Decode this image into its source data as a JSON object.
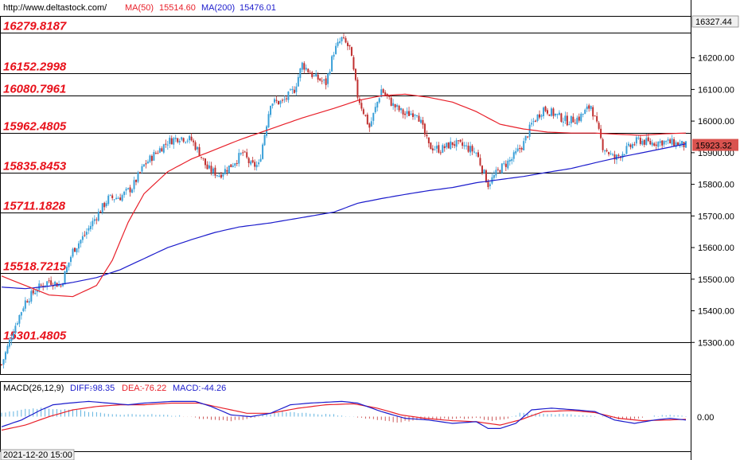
{
  "header": {
    "source": "http://www.deltastock.com/",
    "ma50_label": "MA(50)",
    "ma50_value": "15514.60",
    "ma200_label": "MA(200)",
    "ma200_value": "15476.01"
  },
  "colors": {
    "ma50": "#e8202a",
    "ma200": "#1c1ccc",
    "bull": "#3aa0d8",
    "bear": "#c03030",
    "level_text": "#e8101a",
    "price_tag": "#d9534f",
    "grid_line": "#000000"
  },
  "chart_data": [
    {
      "type": "candlestick",
      "ylim": [
        15200,
        16330
      ],
      "yticks": [
        "16200.00",
        "16100.00",
        "16000.00",
        "15900.00",
        "15800.00",
        "15700.00",
        "15600.00",
        "15500.00",
        "15400.00",
        "15300.00"
      ],
      "ytick_values": [
        16200,
        16100,
        16000,
        15900,
        15800,
        15700,
        15600,
        15500,
        15400,
        15300
      ],
      "levels": [
        {
          "label": "16279.8187",
          "value": 16279.8187
        },
        {
          "label": "16152.2998",
          "value": 16152.2998
        },
        {
          "label": "16080.7961",
          "value": 16080.7961
        },
        {
          "label": "15962.4805",
          "value": 15962.4805
        },
        {
          "label": "15835.8453",
          "value": 15835.8453
        },
        {
          "label": "15711.1828",
          "value": 15711.1828
        },
        {
          "label": "15518.7215",
          "value": 15518.7215
        },
        {
          "label": "15301.4805",
          "value": 15301.4805
        }
      ],
      "top_price": "16327.44",
      "last_price": "15923.32",
      "last_value": 15923.32,
      "close_path": [
        [
          0,
          15230
        ],
        [
          6,
          15340
        ],
        [
          12,
          15430
        ],
        [
          18,
          15470
        ],
        [
          24,
          15495
        ],
        [
          30,
          15480
        ],
        [
          36,
          15590
        ],
        [
          42,
          15640
        ],
        [
          48,
          15700
        ],
        [
          54,
          15755
        ],
        [
          60,
          15760
        ],
        [
          66,
          15790
        ],
        [
          72,
          15860
        ],
        [
          78,
          15900
        ],
        [
          84,
          15935
        ],
        [
          90,
          15950
        ],
        [
          96,
          15940
        ],
        [
          100,
          15900
        ],
        [
          104,
          15850
        ],
        [
          110,
          15830
        ],
        [
          116,
          15860
        ],
        [
          122,
          15900
        ],
        [
          126,
          15860
        ],
        [
          130,
          15860
        ],
        [
          136,
          16060
        ],
        [
          142,
          16060
        ],
        [
          148,
          16100
        ],
        [
          152,
          16180
        ],
        [
          158,
          16140
        ],
        [
          164,
          16120
        ],
        [
          168,
          16220
        ],
        [
          172,
          16260
        ],
        [
          176,
          16230
        ],
        [
          180,
          16080
        ],
        [
          186,
          15980
        ],
        [
          192,
          16100
        ],
        [
          198,
          16050
        ],
        [
          204,
          16020
        ],
        [
          210,
          16030
        ],
        [
          216,
          15920
        ],
        [
          222,
          15910
        ],
        [
          228,
          15930
        ],
        [
          234,
          15920
        ],
        [
          240,
          15900
        ],
        [
          246,
          15800
        ],
        [
          252,
          15850
        ],
        [
          258,
          15880
        ],
        [
          264,
          15930
        ],
        [
          268,
          15990
        ],
        [
          274,
          16040
        ],
        [
          280,
          16020
        ],
        [
          286,
          16000
        ],
        [
          292,
          16010
        ],
        [
          298,
          16050
        ],
        [
          304,
          15920
        ],
        [
          310,
          15880
        ],
        [
          316,
          15910
        ],
        [
          322,
          15940
        ],
        [
          328,
          15930
        ],
        [
          334,
          15935
        ],
        [
          340,
          15930
        ],
        [
          346,
          15923
        ]
      ],
      "ma50_path": [
        [
          0,
          15510
        ],
        [
          12,
          15480
        ],
        [
          24,
          15450
        ],
        [
          36,
          15445
        ],
        [
          48,
          15480
        ],
        [
          56,
          15560
        ],
        [
          64,
          15680
        ],
        [
          72,
          15770
        ],
        [
          84,
          15840
        ],
        [
          96,
          15880
        ],
        [
          108,
          15910
        ],
        [
          120,
          15940
        ],
        [
          136,
          15975
        ],
        [
          152,
          16010
        ],
        [
          168,
          16040
        ],
        [
          180,
          16065
        ],
        [
          192,
          16080
        ],
        [
          204,
          16085
        ],
        [
          216,
          16075
        ],
        [
          228,
          16060
        ],
        [
          240,
          16030
        ],
        [
          252,
          15990
        ],
        [
          264,
          15975
        ],
        [
          276,
          15965
        ],
        [
          288,
          15962
        ],
        [
          300,
          15962
        ],
        [
          312,
          15958
        ],
        [
          324,
          15955
        ],
        [
          336,
          15960
        ],
        [
          346,
          15962
        ]
      ],
      "ma200_path": [
        [
          0,
          15475
        ],
        [
          12,
          15470
        ],
        [
          24,
          15478
        ],
        [
          36,
          15490
        ],
        [
          48,
          15505
        ],
        [
          60,
          15530
        ],
        [
          72,
          15565
        ],
        [
          84,
          15600
        ],
        [
          96,
          15625
        ],
        [
          108,
          15648
        ],
        [
          120,
          15665
        ],
        [
          136,
          15678
        ],
        [
          152,
          15695
        ],
        [
          168,
          15712
        ],
        [
          180,
          15740
        ],
        [
          192,
          15755
        ],
        [
          204,
          15768
        ],
        [
          216,
          15780
        ],
        [
          228,
          15790
        ],
        [
          240,
          15805
        ],
        [
          252,
          15815
        ],
        [
          264,
          15825
        ],
        [
          276,
          15838
        ],
        [
          288,
          15850
        ],
        [
          300,
          15868
        ],
        [
          312,
          15885
        ],
        [
          324,
          15900
        ],
        [
          336,
          15915
        ],
        [
          346,
          15928
        ]
      ]
    },
    {
      "type": "macd",
      "title": "MACD(26,12,9)",
      "diff_label": "DIFF:",
      "diff_value": "-98.35",
      "dea_label": "DEA:",
      "dea_value": "-76.22",
      "macd_label": "MACD:",
      "macd_value": "-44.26",
      "zero_label": "0.00",
      "ylim": [
        -100,
        100
      ],
      "date_label": "2021-12-20 15:00",
      "diff_path": [
        [
          0,
          -30
        ],
        [
          10,
          -10
        ],
        [
          20,
          20
        ],
        [
          26,
          35
        ],
        [
          34,
          40
        ],
        [
          44,
          45
        ],
        [
          54,
          40
        ],
        [
          64,
          35
        ],
        [
          72,
          40
        ],
        [
          86,
          45
        ],
        [
          98,
          45
        ],
        [
          106,
          30
        ],
        [
          116,
          5
        ],
        [
          126,
          0
        ],
        [
          136,
          10
        ],
        [
          146,
          35
        ],
        [
          156,
          40
        ],
        [
          172,
          45
        ],
        [
          180,
          40
        ],
        [
          192,
          15
        ],
        [
          204,
          -5
        ],
        [
          216,
          -10
        ],
        [
          228,
          -20
        ],
        [
          240,
          -15
        ],
        [
          246,
          -35
        ],
        [
          252,
          -35
        ],
        [
          260,
          -20
        ],
        [
          268,
          20
        ],
        [
          278,
          25
        ],
        [
          290,
          20
        ],
        [
          300,
          15
        ],
        [
          310,
          -10
        ],
        [
          320,
          -20
        ],
        [
          330,
          -10
        ],
        [
          338,
          -5
        ],
        [
          346,
          -10
        ]
      ],
      "dea_path": [
        [
          0,
          -40
        ],
        [
          12,
          -25
        ],
        [
          24,
          0
        ],
        [
          36,
          20
        ],
        [
          48,
          30
        ],
        [
          60,
          35
        ],
        [
          72,
          35
        ],
        [
          86,
          40
        ],
        [
          100,
          40
        ],
        [
          112,
          25
        ],
        [
          124,
          10
        ],
        [
          136,
          10
        ],
        [
          150,
          25
        ],
        [
          164,
          35
        ],
        [
          178,
          38
        ],
        [
          190,
          25
        ],
        [
          202,
          5
        ],
        [
          214,
          -5
        ],
        [
          228,
          -12
        ],
        [
          240,
          -15
        ],
        [
          252,
          -25
        ],
        [
          262,
          -10
        ],
        [
          274,
          15
        ],
        [
          288,
          18
        ],
        [
          300,
          12
        ],
        [
          312,
          -5
        ],
        [
          324,
          -12
        ],
        [
          336,
          -10
        ],
        [
          346,
          -8
        ]
      ],
      "hist_path": [
        [
          0,
          10
        ],
        [
          10,
          20
        ],
        [
          20,
          25
        ],
        [
          30,
          22
        ],
        [
          40,
          18
        ],
        [
          50,
          10
        ],
        [
          60,
          5
        ],
        [
          70,
          8
        ],
        [
          80,
          5
        ],
        [
          90,
          3
        ],
        [
          100,
          -5
        ],
        [
          108,
          -10
        ],
        [
          116,
          -12
        ],
        [
          124,
          -8
        ],
        [
          132,
          3
        ],
        [
          142,
          15
        ],
        [
          150,
          12
        ],
        [
          160,
          8
        ],
        [
          170,
          5
        ],
        [
          180,
          -2
        ],
        [
          190,
          -10
        ],
        [
          200,
          -16
        ],
        [
          210,
          -10
        ],
        [
          220,
          -8
        ],
        [
          230,
          -6
        ],
        [
          240,
          -4
        ],
        [
          248,
          -14
        ],
        [
          256,
          -6
        ],
        [
          262,
          10
        ],
        [
          270,
          8
        ],
        [
          280,
          7
        ],
        [
          292,
          5
        ],
        [
          302,
          2
        ],
        [
          310,
          -6
        ],
        [
          320,
          -8
        ],
        [
          330,
          2
        ],
        [
          340,
          5
        ],
        [
          346,
          3
        ]
      ]
    }
  ]
}
